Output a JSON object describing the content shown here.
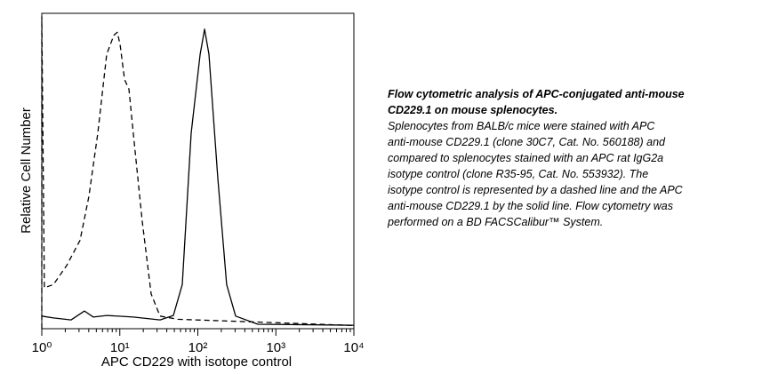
{
  "chart_data": {
    "type": "line",
    "x_label": "APC CD229 with isotope control",
    "y_label": "Relative Cell Number",
    "xscale": "log",
    "xlim": [
      1,
      10000
    ],
    "xticks": [
      {
        "value": 1,
        "label": "10⁰"
      },
      {
        "value": 10,
        "label": "10¹"
      },
      {
        "value": 100,
        "label": "10²"
      },
      {
        "value": 1000,
        "label": "10³"
      },
      {
        "value": 10000,
        "label": "10⁴"
      }
    ],
    "ylim": [
      0,
      100
    ],
    "series": [
      {
        "name": "isotype control",
        "color": "#000000",
        "dash": true,
        "x": [
          1,
          1,
          1.08,
          1.41,
          2.08,
          3.09,
          4.02,
          5.22,
          6.79,
          8.38,
          9.3,
          10.1,
          11.5,
          13.1,
          14.9,
          19.4,
          25.2,
          32.8,
          55.4,
          764,
          10000
        ],
        "values": [
          0,
          99,
          13,
          14,
          20,
          28,
          42,
          62,
          87,
          93,
          94,
          90,
          79,
          76,
          62,
          34,
          11,
          4,
          3,
          2,
          1
        ]
      },
      {
        "name": "anti-mouse CD229.1",
        "color": "#000000",
        "dash": false,
        "x": [
          1,
          1.41,
          2.38,
          3.52,
          4.58,
          6.79,
          14.9,
          32.8,
          48.6,
          63.2,
          82.2,
          107,
          122,
          139,
          180,
          234,
          305,
          588,
          10000
        ],
        "values": [
          4,
          3.4,
          2.8,
          5.6,
          3.7,
          4.2,
          3.7,
          2.8,
          4.2,
          14,
          62,
          87,
          95,
          87,
          48,
          14,
          4,
          1.4,
          1.1
        ]
      }
    ],
    "caption_title": [
      "Flow cytometric analysis of APC-conjugated anti-mouse",
      "CD229.1 on mouse splenocytes."
    ],
    "caption": [
      "Splenocytes from BALB/c mice were stained with APC",
      "anti-mouse CD229.1 (clone 30C7, Cat. No. 560188)  and",
      "compared to splenocytes stained with an APC rat IgG2a",
      "isotype control (clone R35-95, Cat. No. 553932). The",
      "isotype control is represented by a dashed line and the APC",
      "anti-mouse CD229.1 by the solid line. Flow cytometry was",
      "performed on a BD FACSCalibur™ System."
    ]
  }
}
